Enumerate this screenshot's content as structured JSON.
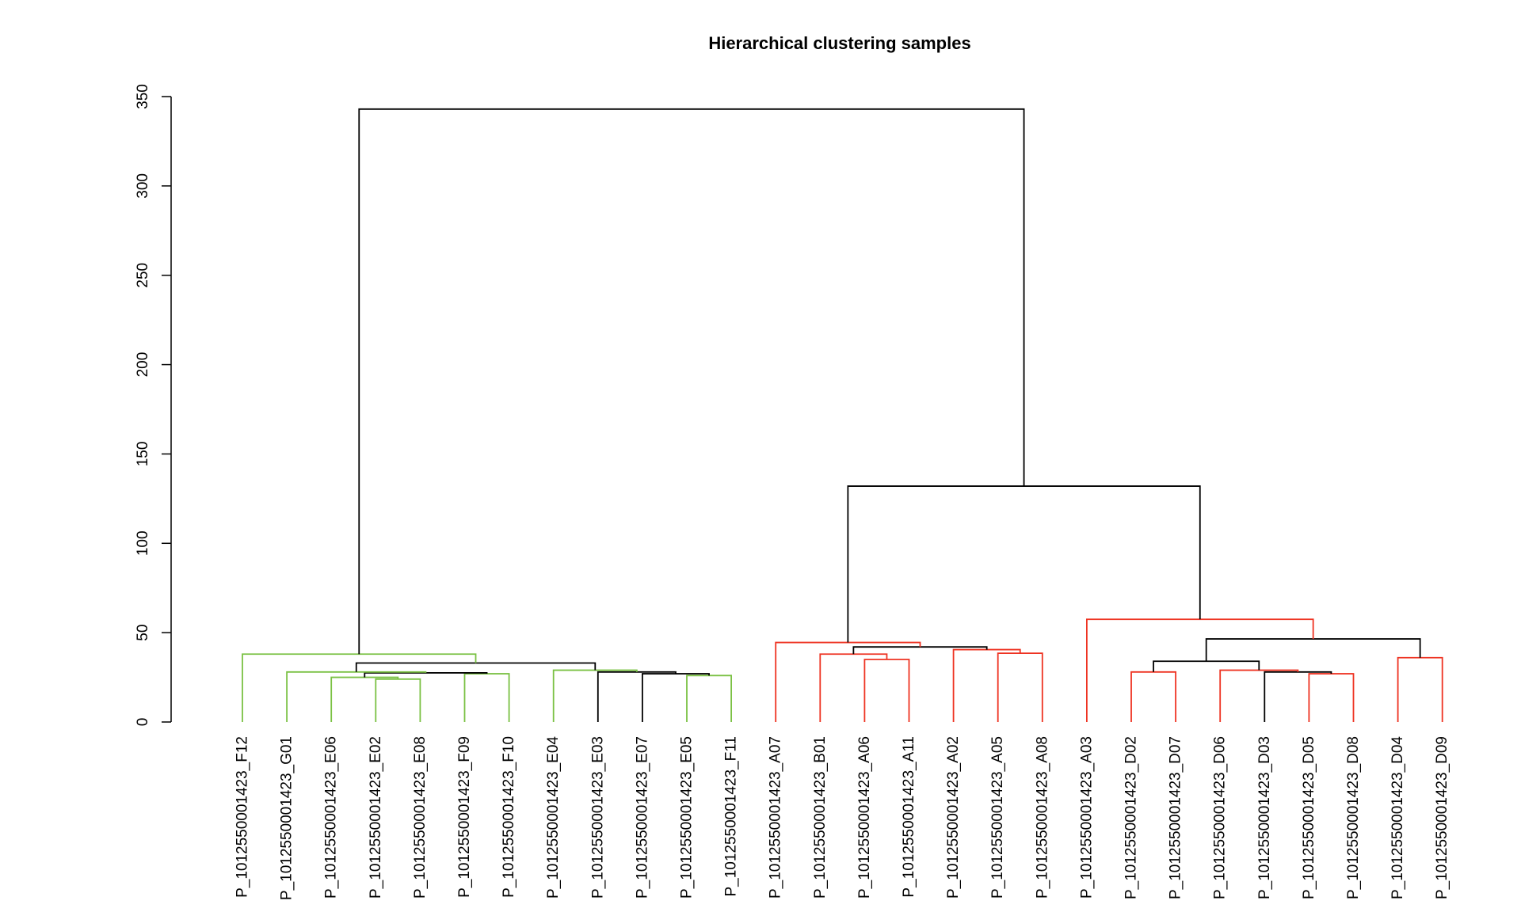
{
  "chart_data": {
    "type": "dendrogram",
    "title": "Hierarchical clustering samples",
    "xlabel": "",
    "ylabel": "",
    "ylim": [
      0,
      350
    ],
    "y_ticks": [
      0,
      50,
      100,
      150,
      200,
      250,
      300,
      350
    ],
    "grid": false,
    "colors": {
      "green": "#7ac143",
      "red": "#ee3322",
      "black": "#000000"
    },
    "leaves": [
      {
        "label": "P_1012550001423_F12",
        "color": "green"
      },
      {
        "label": "P_1012550001423_G01",
        "color": "green"
      },
      {
        "label": "P_1012550001423_E06",
        "color": "green"
      },
      {
        "label": "P_1012550001423_E02",
        "color": "green"
      },
      {
        "label": "P_1012550001423_E08",
        "color": "green"
      },
      {
        "label": "P_1012550001423_F09",
        "color": "green"
      },
      {
        "label": "P_1012550001423_F10",
        "color": "green"
      },
      {
        "label": "P_1012550001423_E04",
        "color": "green"
      },
      {
        "label": "P_1012550001423_E03",
        "color": "green"
      },
      {
        "label": "P_1012550001423_E07",
        "color": "green"
      },
      {
        "label": "P_1012550001423_E05",
        "color": "green"
      },
      {
        "label": "P_1012550001423_F11",
        "color": "green"
      },
      {
        "label": "P_1012550001423_A07",
        "color": "red"
      },
      {
        "label": "P_1012550001423_B01",
        "color": "red"
      },
      {
        "label": "P_1012550001423_A06",
        "color": "red"
      },
      {
        "label": "P_1012550001423_A11",
        "color": "red"
      },
      {
        "label": "P_1012550001423_A02",
        "color": "red"
      },
      {
        "label": "P_1012550001423_A05",
        "color": "red"
      },
      {
        "label": "P_1012550001423_A08",
        "color": "red"
      },
      {
        "label": "P_1012550001423_A03",
        "color": "red"
      },
      {
        "label": "P_1012550001423_D02",
        "color": "red"
      },
      {
        "label": "P_1012550001423_D07",
        "color": "red"
      },
      {
        "label": "P_1012550001423_D06",
        "color": "red"
      },
      {
        "label": "P_1012550001423_D03",
        "color": "red"
      },
      {
        "label": "P_1012550001423_D05",
        "color": "red"
      },
      {
        "label": "P_1012550001423_D08",
        "color": "red"
      },
      {
        "label": "P_1012550001423_D04",
        "color": "red"
      },
      {
        "label": "P_1012550001423_D09",
        "color": "red"
      }
    ],
    "merges": [
      {
        "left": 3,
        "right": 4,
        "height": 24,
        "color": "green"
      },
      {
        "left": 2,
        "right": -1,
        "height": 25,
        "color": "green"
      },
      {
        "left": 5,
        "right": 6,
        "height": 27,
        "color": "green"
      },
      {
        "left": -2,
        "right": -3,
        "height": 27.5,
        "color": "black"
      },
      {
        "left": 1,
        "right": -4,
        "height": 28,
        "color": "green"
      },
      {
        "left": 10,
        "right": 11,
        "height": 26,
        "color": "green"
      },
      {
        "left": 9,
        "right": -6,
        "height": 27,
        "color": "black"
      },
      {
        "left": 8,
        "right": -7,
        "height": 28,
        "color": "black"
      },
      {
        "left": 7,
        "right": -8,
        "height": 29,
        "color": "green"
      },
      {
        "left": -5,
        "right": -9,
        "height": 33,
        "color": "black"
      },
      {
        "left": 0,
        "right": -10,
        "height": 38,
        "color": "green"
      },
      {
        "left": 14,
        "right": 15,
        "height": 35,
        "color": "red"
      },
      {
        "left": 13,
        "right": -12,
        "height": 38,
        "color": "red"
      },
      {
        "left": 17,
        "right": 18,
        "height": 38.5,
        "color": "red"
      },
      {
        "left": 16,
        "right": -14,
        "height": 40.5,
        "color": "red"
      },
      {
        "left": -13,
        "right": -15,
        "height": 42,
        "color": "black"
      },
      {
        "left": 12,
        "right": -16,
        "height": 44.5,
        "color": "red"
      },
      {
        "left": 20,
        "right": 21,
        "height": 28,
        "color": "red"
      },
      {
        "left": 24,
        "right": 25,
        "height": 27,
        "color": "red"
      },
      {
        "left": 23,
        "right": -19,
        "height": 28,
        "color": "black"
      },
      {
        "left": 22,
        "right": -20,
        "height": 29,
        "color": "red"
      },
      {
        "left": -18,
        "right": -21,
        "height": 34,
        "color": "black"
      },
      {
        "left": 26,
        "right": 27,
        "height": 36,
        "color": "red"
      },
      {
        "left": -22,
        "right": -23,
        "height": 46.5,
        "color": "black"
      },
      {
        "left": 19,
        "right": -24,
        "height": 57.5,
        "color": "red"
      },
      {
        "left": -17,
        "right": -25,
        "height": 132,
        "color": "black"
      },
      {
        "left": -11,
        "right": -26,
        "height": 343,
        "color": "black"
      }
    ]
  }
}
